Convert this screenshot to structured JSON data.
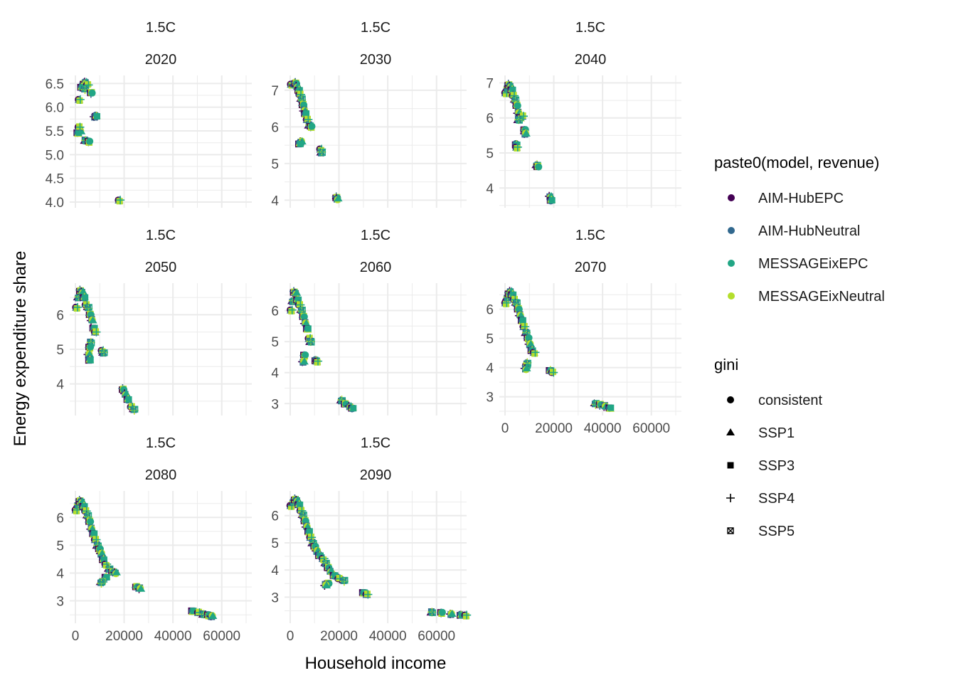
{
  "ylabel": "Energy expenditure share",
  "xlabel": "Household income",
  "colors": {
    "AIM-HubEPC": "#440154",
    "AIM-HubNeutral": "#31688E",
    "MESSAGEixEPC": "#21A685",
    "MESSAGEixNeutral": "#B4DE2C",
    "grid": "#EBEBEB"
  },
  "legend_color": {
    "title": "paste0(model, revenue)",
    "items": [
      "AIM-HubEPC",
      "AIM-HubNeutral",
      "MESSAGEixEPC",
      "MESSAGEixNeutral"
    ]
  },
  "legend_shape": {
    "title": "gini",
    "items": [
      "consistent",
      "SSP1",
      "SSP3",
      "SSP4",
      "SSP5"
    ]
  },
  "chart_data": [
    {
      "type": "scatter",
      "strip_top": "1.5C",
      "strip_bottom": "2020",
      "ylim": [
        4.0,
        6.55
      ],
      "yticks": [
        "4.0",
        "4.5",
        "5.0",
        "5.5",
        "6.0",
        "6.5"
      ],
      "points": [
        [
          1600,
          6.15
        ],
        [
          3000,
          6.45
        ],
        [
          3500,
          6.5
        ],
        [
          4200,
          6.52
        ],
        [
          2500,
          6.42
        ],
        [
          5000,
          6.48
        ],
        [
          3800,
          6.38
        ],
        [
          6500,
          6.3
        ],
        [
          2000,
          5.5
        ],
        [
          1000,
          5.45
        ],
        [
          1500,
          5.58
        ],
        [
          4000,
          5.3
        ],
        [
          5500,
          5.27
        ],
        [
          8000,
          5.8
        ],
        [
          8500,
          5.82
        ],
        [
          18000,
          4.03
        ]
      ]
    },
    {
      "type": "scatter",
      "strip_top": "1.5C",
      "strip_bottom": "2030",
      "ylim": [
        3.95,
        7.25
      ],
      "yticks": [
        "4",
        "5",
        "6",
        "7"
      ],
      "points": [
        [
          500,
          7.15
        ],
        [
          1500,
          7.18
        ],
        [
          2200,
          7.2
        ],
        [
          2800,
          7.1
        ],
        [
          3500,
          7.0
        ],
        [
          4000,
          6.9
        ],
        [
          4600,
          6.75
        ],
        [
          5200,
          6.6
        ],
        [
          5800,
          6.45
        ],
        [
          6200,
          6.35
        ],
        [
          7000,
          6.2
        ],
        [
          7800,
          6.05
        ],
        [
          8500,
          6.0
        ],
        [
          4500,
          5.6
        ],
        [
          3800,
          5.55
        ],
        [
          12500,
          5.38
        ],
        [
          12800,
          5.3
        ],
        [
          19000,
          4.08
        ],
        [
          19300,
          4.03
        ]
      ]
    },
    {
      "type": "scatter",
      "strip_top": "1.5C",
      "strip_bottom": "2040",
      "ylim": [
        3.6,
        7.05
      ],
      "yticks": [
        "4",
        "5",
        "6",
        "7"
      ],
      "points": [
        [
          300,
          6.7
        ],
        [
          900,
          6.85
        ],
        [
          1500,
          6.95
        ],
        [
          2200,
          6.9
        ],
        [
          2800,
          6.8
        ],
        [
          3400,
          6.65
        ],
        [
          4100,
          6.5
        ],
        [
          4800,
          6.35
        ],
        [
          5500,
          6.15
        ],
        [
          6200,
          6.0
        ],
        [
          7200,
          6.05
        ],
        [
          5500,
          5.95
        ],
        [
          8000,
          5.65
        ],
        [
          8300,
          5.55
        ],
        [
          4600,
          5.25
        ],
        [
          4800,
          5.15
        ],
        [
          13000,
          4.65
        ],
        [
          13400,
          4.62
        ],
        [
          18500,
          3.75
        ],
        [
          18900,
          3.65
        ]
      ]
    },
    {
      "type": "scatter",
      "strip_top": "1.5C",
      "strip_bottom": "2050",
      "ylim": [
        3.25,
        6.75
      ],
      "yticks": [
        "4",
        "5",
        "6"
      ],
      "points": [
        [
          500,
          6.2
        ],
        [
          1200,
          6.5
        ],
        [
          2000,
          6.7
        ],
        [
          2800,
          6.65
        ],
        [
          3600,
          6.5
        ],
        [
          4400,
          6.3
        ],
        [
          5200,
          6.2
        ],
        [
          6000,
          6.0
        ],
        [
          6800,
          5.85
        ],
        [
          7500,
          5.6
        ],
        [
          8200,
          5.5
        ],
        [
          6200,
          5.2
        ],
        [
          5800,
          5.05
        ],
        [
          5500,
          4.85
        ],
        [
          5800,
          4.7
        ],
        [
          11000,
          4.95
        ],
        [
          11500,
          4.9
        ],
        [
          19500,
          3.85
        ],
        [
          20500,
          3.7
        ],
        [
          21500,
          3.55
        ],
        [
          23000,
          3.35
        ],
        [
          24000,
          3.25
        ]
      ]
    },
    {
      "type": "scatter",
      "strip_top": "1.5C",
      "strip_bottom": "2060",
      "ylim": [
        2.8,
        6.7
      ],
      "yticks": [
        "3",
        "4",
        "5",
        "6"
      ],
      "points": [
        [
          400,
          6.0
        ],
        [
          1000,
          6.3
        ],
        [
          1600,
          6.6
        ],
        [
          2300,
          6.55
        ],
        [
          3000,
          6.35
        ],
        [
          3800,
          6.2
        ],
        [
          4600,
          6.0
        ],
        [
          5400,
          5.8
        ],
        [
          6200,
          5.6
        ],
        [
          7000,
          5.4
        ],
        [
          7800,
          5.1
        ],
        [
          8300,
          5.0
        ],
        [
          5800,
          4.55
        ],
        [
          5400,
          4.35
        ],
        [
          10500,
          4.4
        ],
        [
          11000,
          4.35
        ],
        [
          21000,
          3.1
        ],
        [
          22500,
          3.0
        ],
        [
          24500,
          2.9
        ],
        [
          25500,
          2.85
        ]
      ]
    },
    {
      "type": "scatter",
      "strip_top": "1.5C",
      "strip_bottom": "2070",
      "ylim": [
        2.55,
        6.7
      ],
      "yticks": [
        "3",
        "4",
        "5",
        "6"
      ],
      "points": [
        [
          300,
          6.2
        ],
        [
          900,
          6.4
        ],
        [
          1600,
          6.55
        ],
        [
          2300,
          6.6
        ],
        [
          3000,
          6.5
        ],
        [
          3800,
          6.35
        ],
        [
          4600,
          6.2
        ],
        [
          5400,
          6.0
        ],
        [
          6200,
          5.8
        ],
        [
          7000,
          5.6
        ],
        [
          7800,
          5.4
        ],
        [
          8600,
          5.2
        ],
        [
          9400,
          5.0
        ],
        [
          10200,
          4.8
        ],
        [
          11000,
          4.6
        ],
        [
          12000,
          4.5
        ],
        [
          9000,
          4.15
        ],
        [
          8800,
          4.05
        ],
        [
          8500,
          3.95
        ],
        [
          18500,
          3.9
        ],
        [
          19500,
          3.85
        ],
        [
          37000,
          2.75
        ],
        [
          39000,
          2.72
        ],
        [
          41000,
          2.68
        ],
        [
          43000,
          2.6
        ]
      ]
    },
    {
      "type": "scatter",
      "strip_top": "1.5C",
      "strip_bottom": "2080",
      "ylim": [
        2.4,
        6.75
      ],
      "yticks": [
        "3",
        "4",
        "5",
        "6"
      ],
      "points": [
        [
          300,
          6.25
        ],
        [
          1000,
          6.45
        ],
        [
          1800,
          6.6
        ],
        [
          2600,
          6.55
        ],
        [
          3400,
          6.4
        ],
        [
          4200,
          6.25
        ],
        [
          5000,
          6.05
        ],
        [
          5800,
          5.85
        ],
        [
          6600,
          5.6
        ],
        [
          7400,
          5.4
        ],
        [
          8200,
          5.2
        ],
        [
          9000,
          5.0
        ],
        [
          9800,
          4.85
        ],
        [
          10600,
          4.7
        ],
        [
          11400,
          4.5
        ],
        [
          12500,
          4.3
        ],
        [
          13800,
          4.15
        ],
        [
          15200,
          4.05
        ],
        [
          16500,
          4.0
        ],
        [
          12500,
          3.85
        ],
        [
          11000,
          3.7
        ],
        [
          10500,
          3.65
        ],
        [
          25000,
          3.5
        ],
        [
          26500,
          3.45
        ],
        [
          48000,
          2.62
        ],
        [
          50500,
          2.58
        ],
        [
          52500,
          2.52
        ],
        [
          54500,
          2.48
        ],
        [
          56000,
          2.45
        ]
      ]
    },
    {
      "type": "scatter",
      "strip_top": "1.5C",
      "strip_bottom": "2090",
      "ylim": [
        2.25,
        6.7
      ],
      "yticks": [
        "3",
        "4",
        "5",
        "6"
      ],
      "points": [
        [
          300,
          6.35
        ],
        [
          1200,
          6.5
        ],
        [
          2000,
          6.6
        ],
        [
          2800,
          6.55
        ],
        [
          3600,
          6.4
        ],
        [
          4400,
          6.2
        ],
        [
          5200,
          6.0
        ],
        [
          6000,
          5.8
        ],
        [
          6800,
          5.6
        ],
        [
          7600,
          5.4
        ],
        [
          8400,
          5.2
        ],
        [
          9200,
          5.0
        ],
        [
          10000,
          4.85
        ],
        [
          11000,
          4.7
        ],
        [
          12000,
          4.55
        ],
        [
          13500,
          4.4
        ],
        [
          14500,
          4.25
        ],
        [
          15500,
          4.1
        ],
        [
          16500,
          3.95
        ],
        [
          18000,
          3.8
        ],
        [
          20000,
          3.7
        ],
        [
          22000,
          3.6
        ],
        [
          15500,
          3.5
        ],
        [
          14500,
          3.45
        ],
        [
          30000,
          3.15
        ],
        [
          31500,
          3.1
        ],
        [
          58000,
          2.45
        ],
        [
          62000,
          2.42
        ],
        [
          66000,
          2.38
        ],
        [
          70000,
          2.35
        ],
        [
          72000,
          2.32
        ]
      ]
    }
  ],
  "xaxis": {
    "xlim": [
      0,
      70000
    ],
    "xticks": [
      "0",
      "20000",
      "40000",
      "60000"
    ]
  }
}
